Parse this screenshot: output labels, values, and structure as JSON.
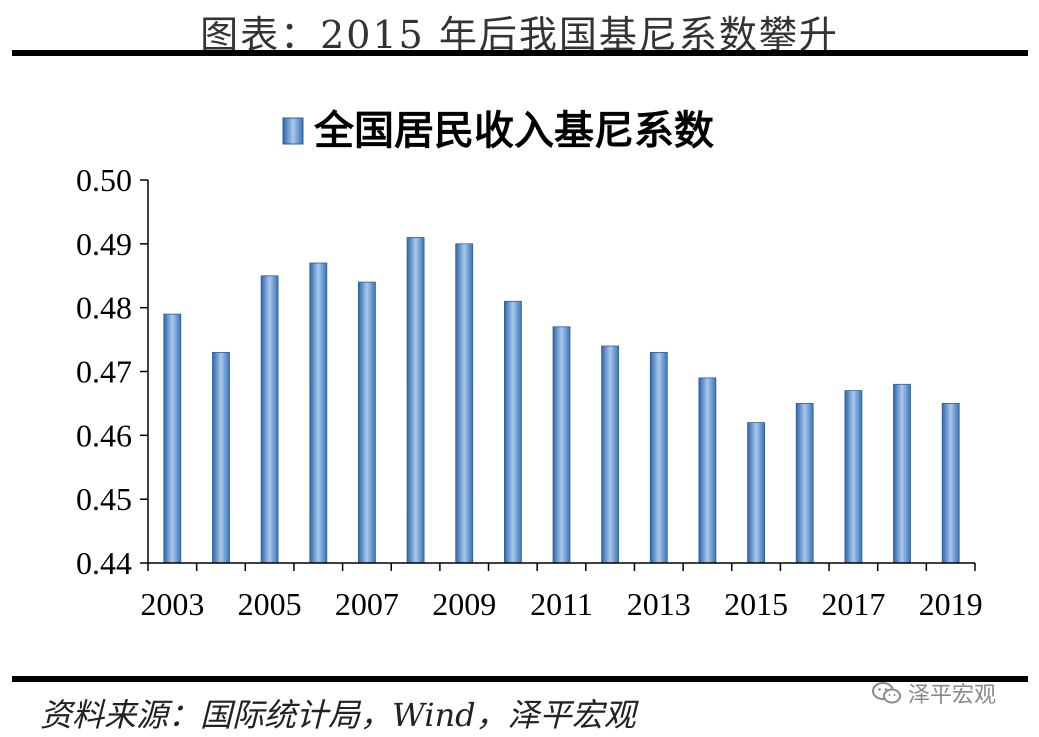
{
  "header": {
    "title": "图表：2015 年后我国基尼系数攀升"
  },
  "footer": {
    "source": "资料来源：国际统计局，Wind，泽平宏观"
  },
  "watermark": {
    "text": "泽平宏观",
    "icon": "wechat-icon"
  },
  "colors": {
    "bar": "#5b8fc7",
    "bar_edge": "#2f5f98",
    "rule": "#000000"
  },
  "chart_data": {
    "type": "bar",
    "legend": "全国居民收入基尼系数",
    "legend_position": "top-center",
    "categories": [
      "2003",
      "2004",
      "2005",
      "2006",
      "2007",
      "2008",
      "2009",
      "2010",
      "2011",
      "2012",
      "2013",
      "2014",
      "2015",
      "2016",
      "2017",
      "2018",
      "2019"
    ],
    "series": [
      {
        "name": "全国居民收入基尼系数",
        "values": [
          0.479,
          0.473,
          0.485,
          0.487,
          0.484,
          0.491,
          0.49,
          0.481,
          0.477,
          0.474,
          0.473,
          0.469,
          0.462,
          0.465,
          0.467,
          0.468,
          0.465
        ]
      }
    ],
    "x_tick_labels": [
      "2003",
      "2005",
      "2007",
      "2009",
      "2011",
      "2013",
      "2015",
      "2017",
      "2019"
    ],
    "y_tick_labels": [
      "0.44",
      "0.45",
      "0.46",
      "0.47",
      "0.48",
      "0.49",
      "0.50"
    ],
    "ylim": [
      0.44,
      0.5
    ],
    "grid": false
  }
}
